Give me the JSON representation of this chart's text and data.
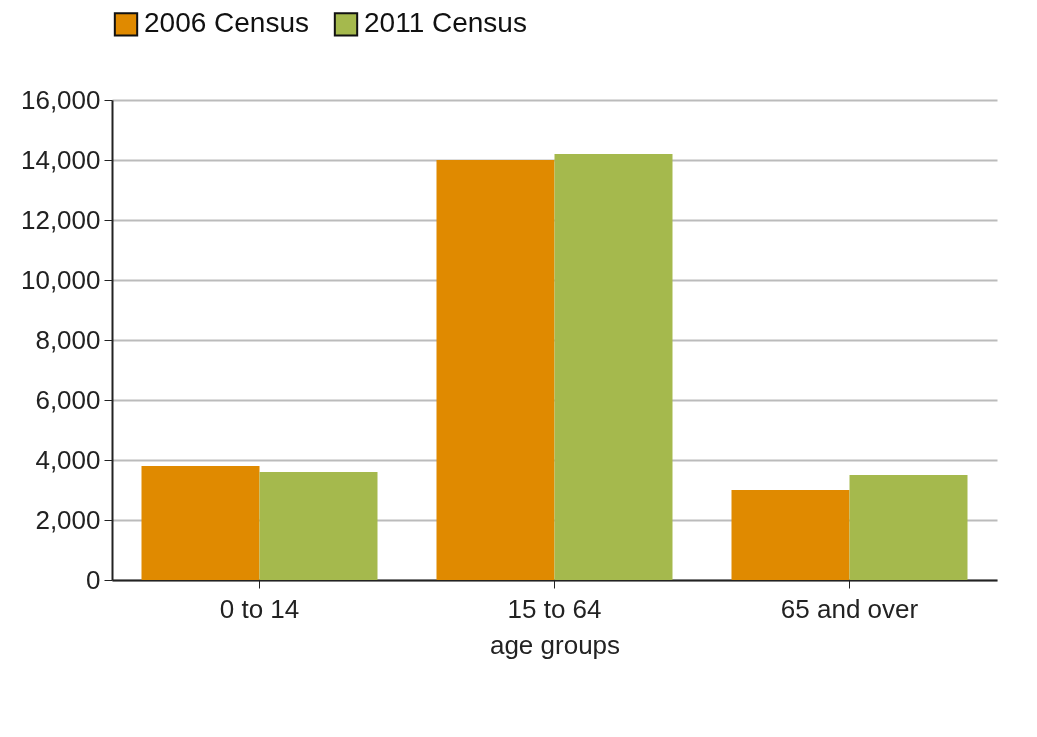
{
  "chart_data": {
    "type": "bar",
    "xlabel": "age groups",
    "categories": [
      "0 to 14",
      "15 to 64",
      "65 and over"
    ],
    "series": [
      {
        "name": "2006 Census",
        "color": "#e08a00",
        "values": [
          3800,
          14000,
          3000
        ]
      },
      {
        "name": "2011 Census",
        "color": "#a5b94d",
        "values": [
          3600,
          14200,
          3500
        ]
      }
    ],
    "ylim": [
      0,
      16000
    ],
    "yticks": [
      0,
      {
        "value": 2000,
        "label": "2,000"
      },
      {
        "value": 4000,
        "label": "4,000"
      },
      {
        "value": 6000,
        "label": "6,000"
      },
      {
        "value": 8000,
        "label": "8,000"
      },
      {
        "value": 10000,
        "label": "10,000"
      },
      {
        "value": 12000,
        "label": "12,000"
      },
      {
        "value": 14000,
        "label": "14,000"
      },
      {
        "value": 16000,
        "label": "16,000"
      }
    ],
    "grid": "y",
    "legend": "top"
  }
}
